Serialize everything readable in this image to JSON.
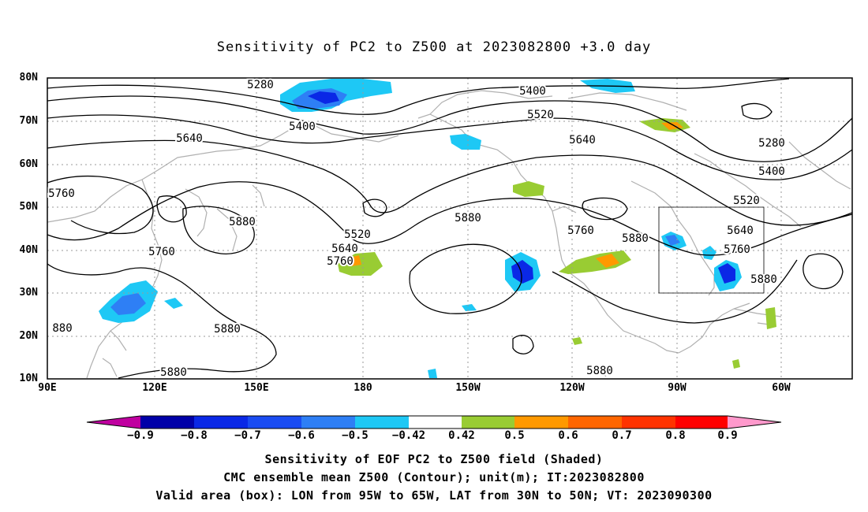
{
  "title": "Sensitivity of PC2 to Z500 at 2023082800 +3.0 day",
  "lat_labels": [
    "80N",
    "70N",
    "60N",
    "50N",
    "40N",
    "30N",
    "20N",
    "10N"
  ],
  "lon_labels": [
    "90E",
    "120E",
    "150E",
    "180",
    "150W",
    "120W",
    "90W",
    "60W"
  ],
  "contour_labels": [
    "5280",
    "5400",
    "5640",
    "5760",
    "5880",
    "5400",
    "5520",
    "5640",
    "5880",
    "5520",
    "5640",
    "5760",
    "5760",
    "5880",
    "5880",
    "5880",
    "5280",
    "5400",
    "5520",
    "5640",
    "5760",
    "5880",
    "5880",
    "880"
  ],
  "colorbar": {
    "labels": [
      "−0.9",
      "−0.8",
      "−0.7",
      "−0.6",
      "−0.5",
      "−0.42",
      "0.42",
      "0.5",
      "0.6",
      "0.7",
      "0.8",
      "0.9"
    ],
    "colors": [
      "#c000a0",
      "#0000a8",
      "#0a28e6",
      "#1a4cf2",
      "#2e7ff5",
      "#1ec8f5",
      "#ffffff",
      "#99cc33",
      "#ff9900",
      "#ff6600",
      "#ff3300",
      "#ff0000",
      "#ff99cc"
    ]
  },
  "captions": [
    "Sensitivity of EOF PC2 to Z500 field (Shaded)",
    "CMC ensemble mean Z500 (Contour); unit(m); IT:2023082800",
    "Valid area (box): LON from 95W to 65W, LAT from 30N to 50N; VT: 2023090300"
  ],
  "colors": {
    "contour": "#000000",
    "coastline": "#b0b0b0",
    "grid": "#999999",
    "box": "#000000"
  }
}
